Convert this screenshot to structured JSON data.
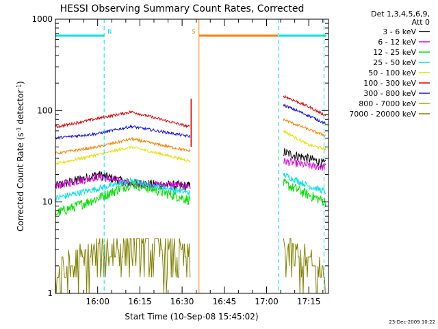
{
  "chart_data": {
    "type": "line",
    "title": "HESSI Observing Summary Count Rates, Corrected",
    "ylabel_main": "Corrected Count Rate (s",
    "ylabel_sup1": "-1",
    "ylabel_mid": " detector",
    "ylabel_sup2": "-1",
    "ylabel_end": ")",
    "xlabel": "Start Time (10-Sep-08 15:45:02)",
    "footer": "23-Dec-2009 10:22",
    "yscale": "log",
    "ylim": [
      1,
      1000
    ],
    "xlim_minutes": [
      0,
      97
    ],
    "ytick_values": [
      1,
      10,
      100,
      1000
    ],
    "ytick_labels": [
      "1",
      "10",
      "100",
      "1000"
    ],
    "xtick_minutes": [
      15,
      30,
      45,
      60,
      75,
      90
    ],
    "xtick_labels": [
      "16:00",
      "16:15",
      "16:30",
      "16:45",
      "17:00",
      "17:15"
    ],
    "grid": false,
    "legend_position": "right",
    "legend_header": [
      "Det 1,3,4,5,6,9,",
      "Att 0"
    ],
    "series": [
      {
        "name": "3 - 6 keV",
        "color": "#000000",
        "seg1": [
          15,
          20,
          16,
          15
        ],
        "seg2": [
          35,
          30,
          26
        ]
      },
      {
        "name": "6 - 12 keV",
        "color": "#e000e0",
        "seg1": [
          15,
          19,
          16,
          15
        ],
        "seg2": [
          28,
          25,
          24
        ]
      },
      {
        "name": "12 - 25 keV",
        "color": "#00e000",
        "seg1": [
          7.5,
          11,
          16,
          10.5
        ],
        "seg2": [
          16,
          12,
          10
        ]
      },
      {
        "name": "25 - 50 keV",
        "color": "#00e0e0",
        "seg1": [
          11,
          14,
          17,
          12.5
        ],
        "seg2": [
          20,
          15,
          13
        ]
      },
      {
        "name": "50 - 100 keV",
        "color": "#e0e000",
        "seg1": [
          26,
          33,
          40,
          28
        ],
        "seg2": [
          60,
          42,
          38
        ]
      },
      {
        "name": "100 - 300 keV",
        "color": "#e00000",
        "seg1": [
          66,
          82,
          97,
          66
        ],
        "seg2": [
          145,
          110,
          88
        ]
      },
      {
        "name": "300 - 800 keV",
        "color": "#1010e0",
        "seg1": [
          50,
          56,
          67,
          52
        ],
        "seg2": [
          115,
          88,
          72
        ]
      },
      {
        "name": "800 - 7000 keV",
        "color": "#ff8000",
        "seg1": [
          34,
          40,
          49,
          36
        ],
        "seg2": [
          80,
          62,
          53
        ]
      },
      {
        "name": "7000 - 20000 keV",
        "color": "#808000",
        "seg1": [
          1.5,
          2.7,
          3.5,
          2.3
        ],
        "seg2": [
          3,
          2,
          1.5
        ]
      }
    ],
    "segment_minutes": {
      "seg1": [
        0,
        15,
        27,
        48
      ],
      "seg2": [
        81,
        90,
        96
      ]
    },
    "flags": [
      {
        "label": "N",
        "color": "#00e0e0",
        "start": 0,
        "end": 17.3,
        "line_at": [
          17.3
        ]
      },
      {
        "label": "S",
        "color": "#ff8000",
        "start": 51,
        "end": 79,
        "line_at": [
          51
        ]
      },
      {
        "label": "",
        "color": "#00e0e0",
        "start": 79.3,
        "end": 96.2,
        "line_at": [
          79.3,
          95.4
        ]
      }
    ]
  }
}
